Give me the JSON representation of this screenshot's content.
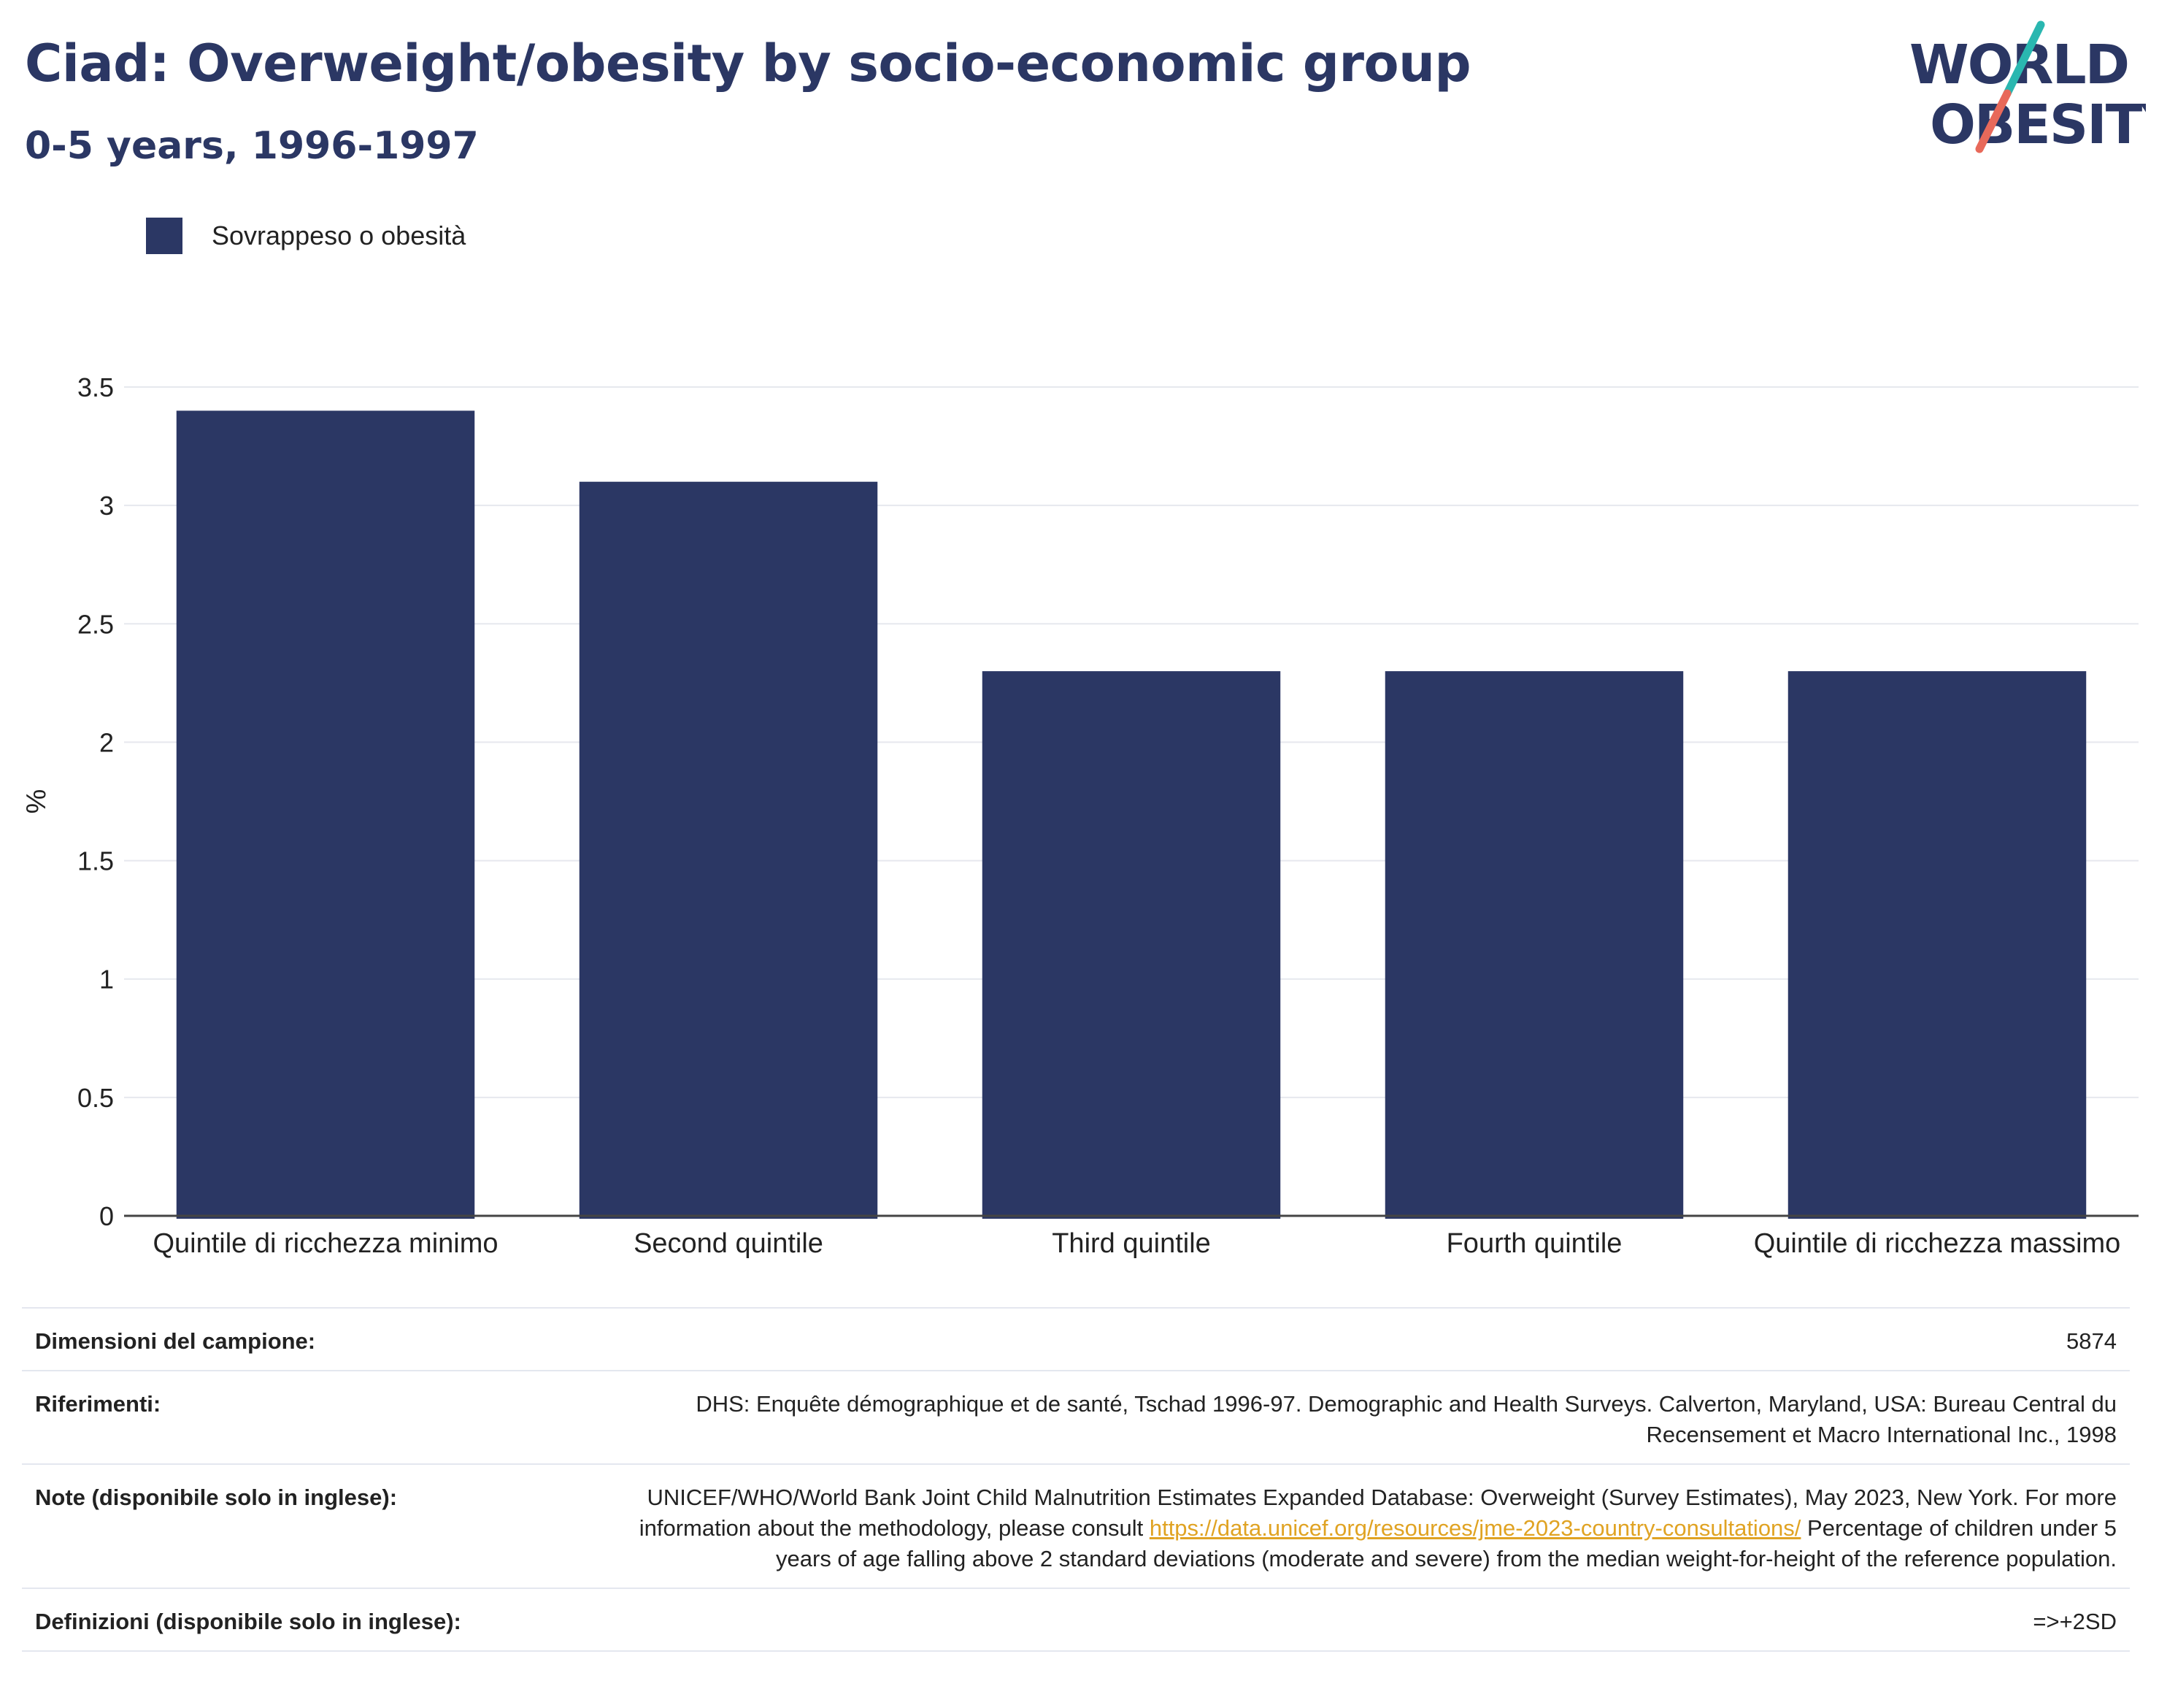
{
  "header": {
    "title": "Ciad: Overweight/obesity by socio-economic group",
    "subtitle": "0-5 years, 1996-1997"
  },
  "logo": {
    "line1": "WORLD",
    "line2": "OBESITY",
    "colors": {
      "text": "#2b3764",
      "slash_top": "#2ab7b0",
      "slash_bottom": "#e8695a"
    }
  },
  "chart_data": {
    "type": "bar",
    "categories": [
      "Quintile di ricchezza minimo",
      "Second quintile",
      "Third quintile",
      "Fourth quintile",
      "Quintile di ricchezza massimo"
    ],
    "series": [
      {
        "name": "Sovrappeso o obesità",
        "values": [
          3.4,
          3.1,
          2.3,
          2.3,
          2.3
        ],
        "color": "#2b3764"
      }
    ],
    "ylabel": "%",
    "xlabel": "",
    "ylim": [
      0,
      3.5
    ],
    "yticks": [
      0,
      0.5,
      1,
      1.5,
      2,
      2.5,
      3,
      3.5
    ],
    "ytick_labels": [
      "0",
      "0.5",
      "1",
      "1.5",
      "2",
      "2.5",
      "3",
      "3.5"
    ],
    "grid": true,
    "legend": "top-left"
  },
  "info": {
    "sample_label": "Dimensioni del campione:",
    "sample_value": "5874",
    "refs_label": "Riferimenti:",
    "refs_value": "DHS: Enquête démographique et de santé, Tschad 1996-97. Demographic and Health Surveys. Calverton, Maryland, USA: Bureau Central du Recensement et Macro International Inc., 1998",
    "notes_label": "Note (disponibile solo in inglese):",
    "notes_text_1": "UNICEF/WHO/World Bank Joint Child Malnutrition Estimates Expanded Database: Overweight (Survey Estimates), May 2023, New York. For more information about the methodology, please consult",
    "notes_link": "https://data.unicef.org/resources/jme-2023-country-consultations/",
    "notes_text_2": "Percentage of children under 5 years of age falling above 2 standard deviations (moderate and severe) from the median weight-for-height of the reference population.",
    "defs_label": "Definizioni (disponibile solo in inglese):",
    "defs_value": "=>+2SD"
  }
}
